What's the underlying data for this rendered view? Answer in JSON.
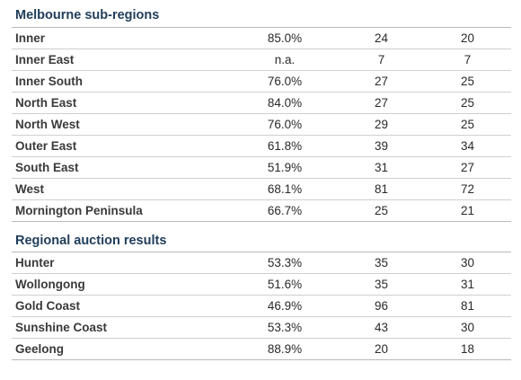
{
  "sections": [
    {
      "title": "Melbourne sub-regions",
      "rows": [
        {
          "name": "Inner",
          "rate": "85.0%",
          "col2": "24",
          "col3": "20"
        },
        {
          "name": "Inner East",
          "rate": "n.a.",
          "col2": "7",
          "col3": "7"
        },
        {
          "name": "Inner South",
          "rate": "76.0%",
          "col2": "27",
          "col3": "25"
        },
        {
          "name": "North East",
          "rate": "84.0%",
          "col2": "27",
          "col3": "25"
        },
        {
          "name": "North West",
          "rate": "76.0%",
          "col2": "29",
          "col3": "25"
        },
        {
          "name": "Outer East",
          "rate": "61.8%",
          "col2": "39",
          "col3": "34"
        },
        {
          "name": "South East",
          "rate": "51.9%",
          "col2": "31",
          "col3": "27"
        },
        {
          "name": "West",
          "rate": "68.1%",
          "col2": "81",
          "col3": "72"
        },
        {
          "name": "Mornington Peninsula",
          "rate": "66.7%",
          "col2": "25",
          "col3": "21"
        }
      ]
    },
    {
      "title": "Regional auction results",
      "rows": [
        {
          "name": "Hunter",
          "rate": "53.3%",
          "col2": "35",
          "col3": "30"
        },
        {
          "name": "Wollongong",
          "rate": "51.6%",
          "col2": "35",
          "col3": "31"
        },
        {
          "name": "Gold Coast",
          "rate": "46.9%",
          "col2": "96",
          "col3": "81"
        },
        {
          "name": "Sunshine Coast",
          "rate": "53.3%",
          "col2": "43",
          "col3": "30"
        },
        {
          "name": "Geelong",
          "rate": "88.9%",
          "col2": "20",
          "col3": "18"
        }
      ]
    }
  ]
}
